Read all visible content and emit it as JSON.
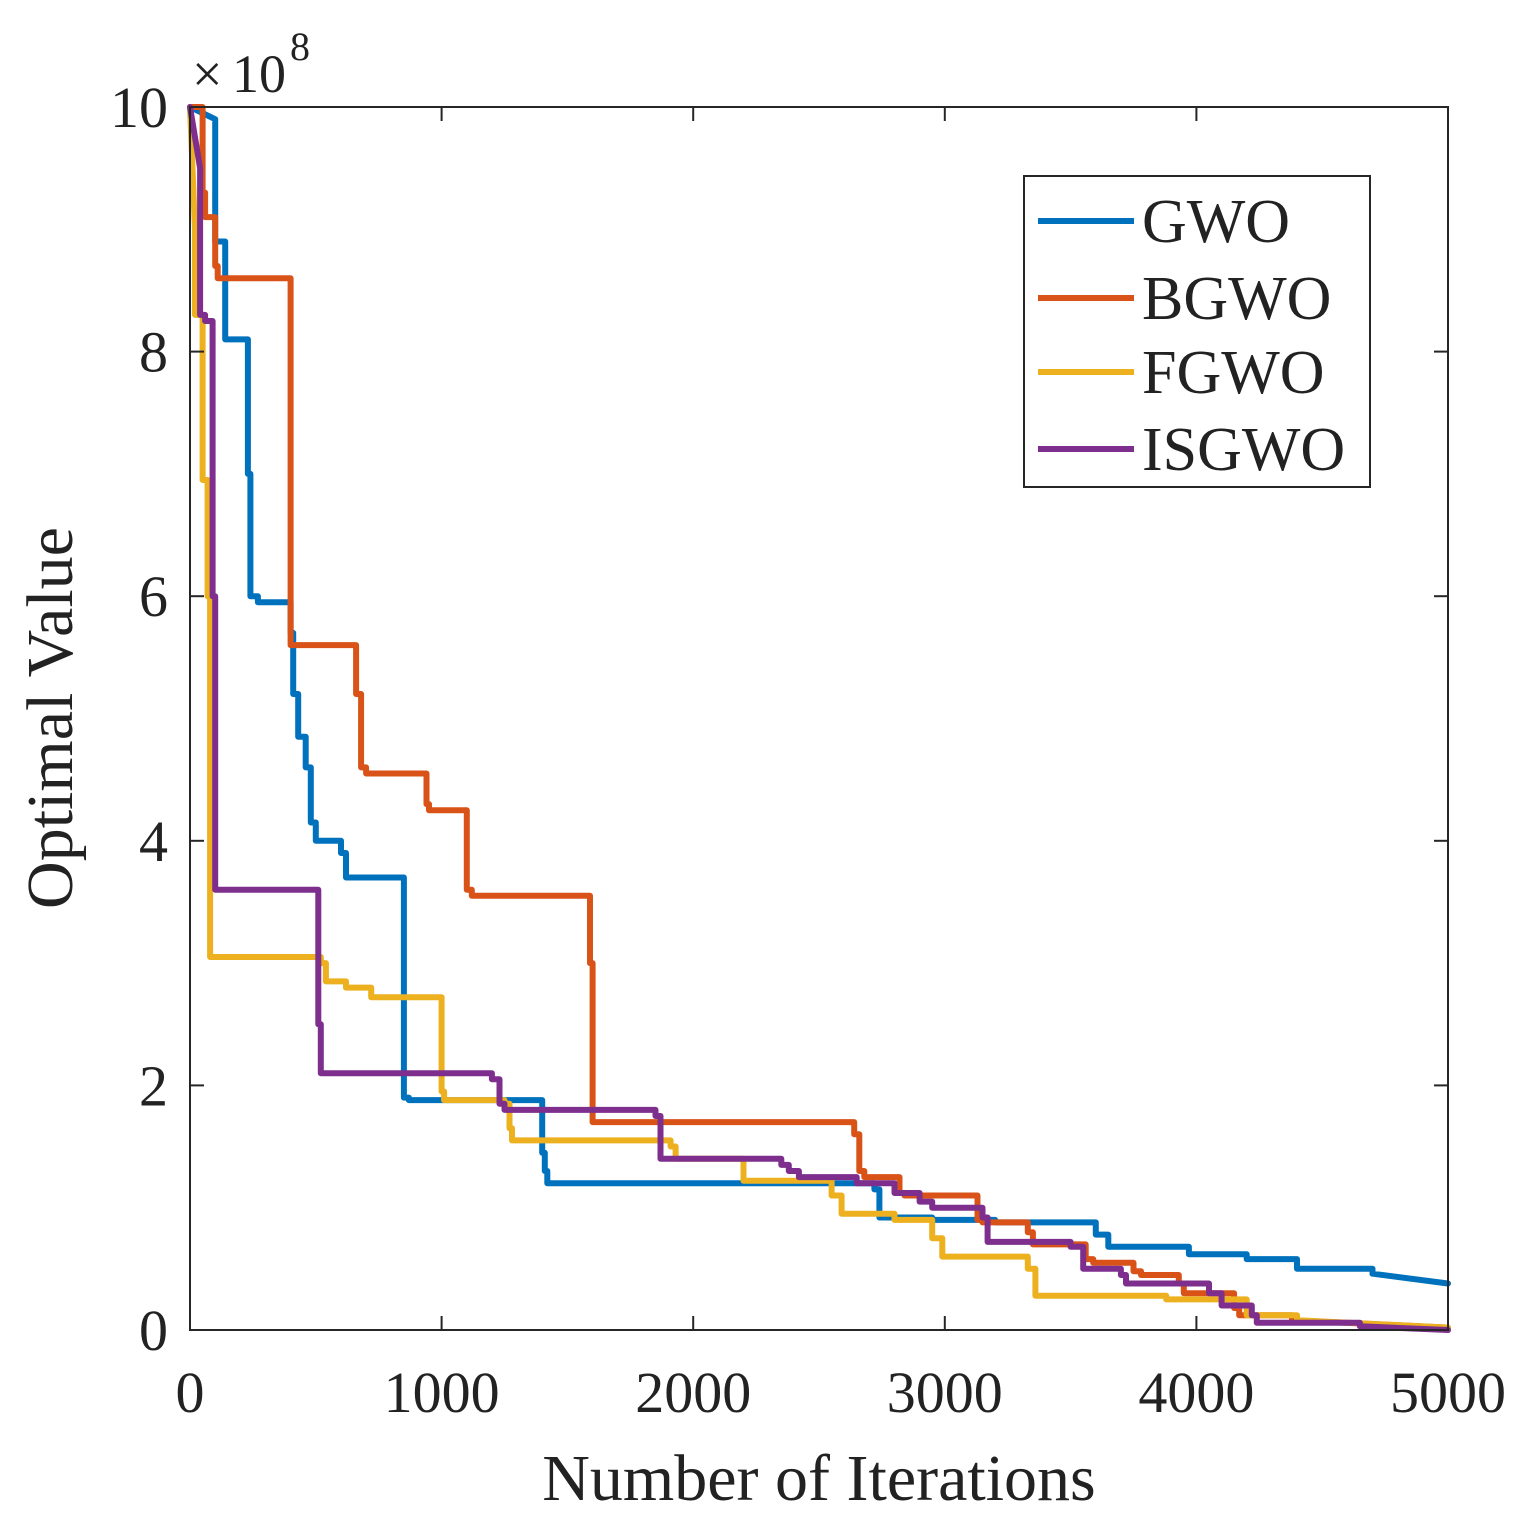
{
  "chart_data": {
    "type": "line",
    "title": "",
    "xlabel": "Number of Iterations",
    "ylabel": "Optimal Value",
    "y_exponent_base": "10",
    "y_exponent_power": "8",
    "y_exponent_prefix": "×",
    "xlim": [
      0,
      5000
    ],
    "ylim": [
      0,
      10
    ],
    "xticks": [
      0,
      1000,
      2000,
      3000,
      4000,
      5000
    ],
    "yticks": [
      0,
      2,
      4,
      6,
      8,
      10
    ],
    "xtick_labels": [
      "0",
      "1000",
      "2000",
      "3000",
      "4000",
      "5000"
    ],
    "ytick_labels": [
      "0",
      "2",
      "4",
      "6",
      "8",
      "10"
    ],
    "grid": false,
    "legend_position": "top-right",
    "series": [
      {
        "name": "GWO",
        "color": "#0072BD",
        "x": [
          0,
          100,
          100,
          140,
          140,
          230,
          230,
          240,
          240,
          270,
          270,
          400,
          400,
          410,
          410,
          430,
          430,
          460,
          460,
          480,
          480,
          500,
          500,
          600,
          600,
          620,
          620,
          720,
          720,
          850,
          850,
          870,
          870,
          1400,
          1400,
          1410,
          1410,
          1420,
          1420,
          2720,
          2720,
          2740,
          2740,
          2950,
          2950,
          3200,
          3200,
          3600,
          3600,
          3650,
          3650,
          3970,
          3970,
          4200,
          4200,
          4400,
          4400,
          4700,
          4700,
          5000
        ],
        "y": [
          10,
          9.9,
          8.9,
          8.9,
          8.1,
          8.1,
          7.0,
          7.0,
          6.0,
          6.0,
          5.95,
          5.95,
          5.7,
          5.7,
          5.2,
          5.2,
          4.85,
          4.85,
          4.6,
          4.6,
          4.15,
          4.15,
          4.0,
          4.0,
          3.9,
          3.9,
          3.7,
          3.7,
          3.7,
          3.7,
          1.9,
          1.9,
          1.88,
          1.88,
          1.45,
          1.45,
          1.3,
          1.3,
          1.2,
          1.2,
          1.15,
          1.15,
          0.92,
          0.92,
          0.9,
          0.9,
          0.88,
          0.88,
          0.78,
          0.78,
          0.68,
          0.68,
          0.62,
          0.62,
          0.58,
          0.58,
          0.5,
          0.5,
          0.46,
          0.38
        ]
      },
      {
        "name": "BGWO",
        "color": "#D95319",
        "x": [
          0,
          50,
          50,
          60,
          60,
          100,
          100,
          110,
          110,
          400,
          400,
          410,
          410,
          660,
          660,
          680,
          680,
          700,
          700,
          940,
          940,
          950,
          950,
          1100,
          1100,
          1120,
          1120,
          1590,
          1590,
          1600,
          1600,
          2640,
          2640,
          2660,
          2660,
          2680,
          2680,
          2820,
          2820,
          2840,
          2840,
          2930,
          2930,
          3130,
          3130,
          3150,
          3150,
          3330,
          3330,
          3350,
          3350,
          3560,
          3560,
          3590,
          3590,
          3750,
          3750,
          3780,
          3780,
          3930,
          3930,
          3950,
          3950,
          4150,
          4150,
          4170,
          4170,
          4380,
          4380,
          5000
        ],
        "y": [
          10,
          10,
          9.3,
          9.3,
          9.1,
          9.1,
          8.7,
          8.7,
          8.6,
          8.6,
          5.6,
          5.6,
          5.6,
          5.6,
          5.2,
          5.2,
          4.6,
          4.6,
          4.55,
          4.55,
          4.3,
          4.3,
          4.25,
          4.25,
          3.6,
          3.6,
          3.55,
          3.55,
          3.0,
          3.0,
          1.7,
          1.7,
          1.6,
          1.6,
          1.3,
          1.3,
          1.25,
          1.25,
          1.12,
          1.12,
          1.1,
          1.1,
          1.1,
          1.1,
          0.9,
          0.9,
          0.88,
          0.88,
          0.8,
          0.8,
          0.7,
          0.7,
          0.58,
          0.58,
          0.55,
          0.55,
          0.48,
          0.48,
          0.45,
          0.45,
          0.38,
          0.38,
          0.3,
          0.3,
          0.18,
          0.18,
          0.12,
          0.12,
          0.08,
          0.02
        ]
      },
      {
        "name": "FGWO",
        "color": "#EDB120",
        "x": [
          0,
          20,
          20,
          50,
          50,
          70,
          70,
          80,
          80,
          520,
          520,
          540,
          540,
          620,
          620,
          720,
          720,
          770,
          770,
          1000,
          1000,
          1010,
          1010,
          1250,
          1250,
          1270,
          1270,
          1280,
          1280,
          1900,
          1900,
          1910,
          1910,
          1930,
          1930,
          2200,
          2200,
          2550,
          2550,
          2590,
          2590,
          2800,
          2800,
          2950,
          2950,
          2990,
          2990,
          3330,
          3330,
          3360,
          3360,
          3580,
          3580,
          3880,
          3880,
          4200,
          4200,
          4400,
          4400,
          5000
        ],
        "y": [
          10,
          9.0,
          8.3,
          8.3,
          6.95,
          6.95,
          6.0,
          6.0,
          3.05,
          3.05,
          3.0,
          3.0,
          2.85,
          2.85,
          2.8,
          2.8,
          2.72,
          2.72,
          2.72,
          2.72,
          1.95,
          1.95,
          1.88,
          1.88,
          1.85,
          1.85,
          1.65,
          1.65,
          1.55,
          1.55,
          1.55,
          1.55,
          1.5,
          1.5,
          1.4,
          1.4,
          1.22,
          1.22,
          1.1,
          1.1,
          0.95,
          0.95,
          0.9,
          0.9,
          0.75,
          0.75,
          0.6,
          0.6,
          0.5,
          0.5,
          0.28,
          0.28,
          0.28,
          0.28,
          0.25,
          0.25,
          0.12,
          0.12,
          0.08,
          0.02
        ]
      },
      {
        "name": "ISGWO",
        "color": "#7E2F8E",
        "x": [
          0,
          40,
          40,
          60,
          60,
          90,
          90,
          100,
          100,
          500,
          500,
          510,
          510,
          520,
          520,
          1200,
          1200,
          1230,
          1230,
          1250,
          1250,
          1850,
          1850,
          1870,
          1870,
          2350,
          2350,
          2380,
          2380,
          2420,
          2420,
          2650,
          2650,
          2800,
          2800,
          2900,
          2900,
          2950,
          2950,
          3150,
          3150,
          3170,
          3170,
          3500,
          3500,
          3550,
          3550,
          3700,
          3700,
          3720,
          3720,
          4050,
          4050,
          4100,
          4100,
          4220,
          4220,
          4240,
          4240,
          4650,
          4650,
          5000
        ],
        "y": [
          10,
          9.5,
          8.3,
          8.3,
          8.25,
          8.25,
          6.0,
          6.0,
          3.6,
          3.6,
          3.6,
          3.6,
          2.5,
          2.5,
          2.1,
          2.1,
          2.05,
          2.05,
          1.85,
          1.85,
          1.8,
          1.8,
          1.75,
          1.75,
          1.4,
          1.4,
          1.35,
          1.35,
          1.3,
          1.3,
          1.25,
          1.25,
          1.2,
          1.2,
          1.12,
          1.12,
          1.05,
          1.05,
          1.0,
          1.0,
          0.92,
          0.92,
          0.72,
          0.72,
          0.68,
          0.68,
          0.5,
          0.5,
          0.45,
          0.45,
          0.38,
          0.38,
          0.3,
          0.3,
          0.2,
          0.2,
          0.12,
          0.12,
          0.06,
          0.06,
          0.03,
          0.0
        ]
      }
    ]
  }
}
